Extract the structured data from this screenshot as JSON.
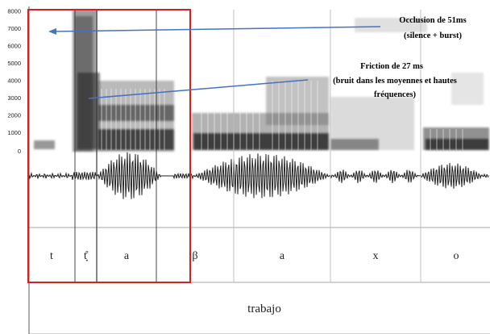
{
  "spectrogram": {
    "y_ticks": [
      "8000",
      "7000",
      "6000",
      "5000",
      "4000",
      "3000",
      "2000",
      "1000",
      "0"
    ]
  },
  "segments": [
    "t",
    "t̞̊",
    "a",
    "β",
    "a",
    "x",
    "o"
  ],
  "word": "trabajo",
  "annotations": {
    "occlusion": {
      "line1": "Occlusion de 51ms",
      "line2": "(silence + burst)"
    },
    "friction": {
      "line1": "Friction de 27 ms",
      "line2": "(bruit dans les moyennes et hautes",
      "line3": "fréquences)"
    }
  },
  "colors": {
    "highlight_box": "#d42020",
    "arrow": "#4472c4",
    "ink": "#222222"
  }
}
